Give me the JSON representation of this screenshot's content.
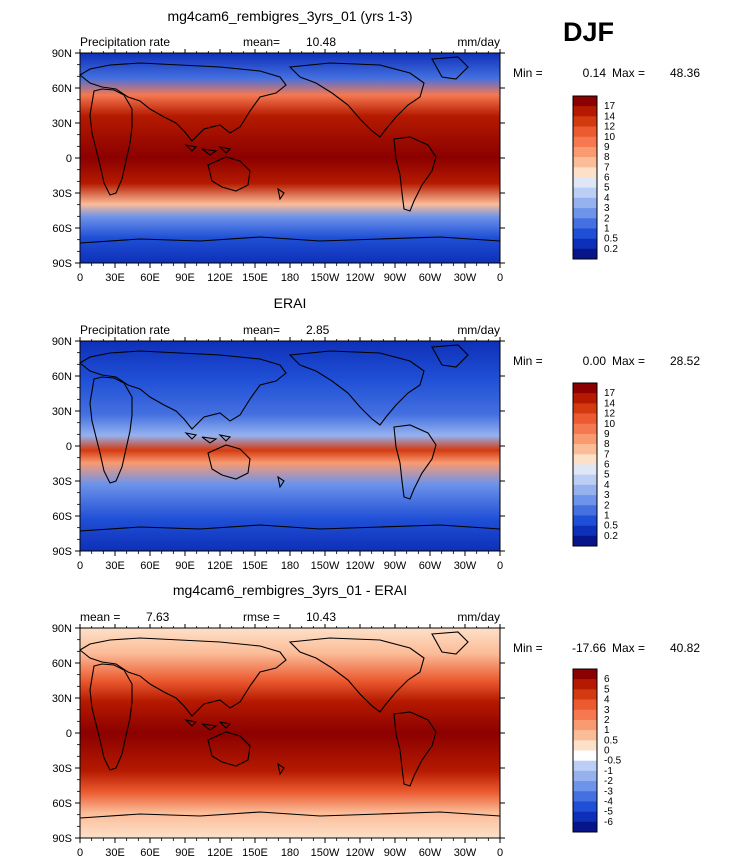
{
  "season": "DJF",
  "chart_data": [
    {
      "type": "heatmap",
      "title": "mg4cam6_rembigres_3yrs_01 (yrs 1-3)",
      "left_label": "Precipitation rate",
      "center_label": "mean=",
      "center_value": "10.48",
      "units": "mm/day",
      "minmax": {
        "min_label": "Min =",
        "min": "0.14",
        "max_label": "Max =",
        "max": "48.36"
      },
      "colorbar": {
        "levels": [
          "17",
          "14",
          "12",
          "10",
          "9",
          "8",
          "7",
          "6",
          "5",
          "4",
          "3",
          "2",
          "1",
          "0.5",
          "0.2"
        ],
        "colors": [
          "#8b0000",
          "#b51a00",
          "#d43a10",
          "#eb5a30",
          "#f57850",
          "#f99a70",
          "#fbbc98",
          "#fde0c8",
          "#dfe7f7",
          "#bccef5",
          "#95b2ef",
          "#6e93ea",
          "#4470e0",
          "#1f4fd6",
          "#0e30b8",
          "#06158a"
        ]
      },
      "x_ticks": [
        "0",
        "30E",
        "60E",
        "90E",
        "120E",
        "150E",
        "180",
        "150W",
        "120W",
        "90W",
        "60W",
        "30W",
        "0"
      ],
      "y_ticks": [
        "90N",
        "60N",
        "30N",
        "0",
        "30S",
        "60S",
        "90S"
      ],
      "x_range": [
        0,
        360
      ],
      "y_range": [
        -90,
        90
      ]
    },
    {
      "type": "heatmap",
      "title": "ERAI",
      "left_label": "Precipitation rate",
      "center_label": "mean=",
      "center_value": "2.85",
      "units": "mm/day",
      "minmax": {
        "min_label": "Min =",
        "min": "0.00",
        "max_label": "Max =",
        "max": "28.52"
      },
      "colorbar": {
        "levels": [
          "17",
          "14",
          "12",
          "10",
          "9",
          "8",
          "7",
          "6",
          "5",
          "4",
          "3",
          "2",
          "1",
          "0.5",
          "0.2"
        ],
        "colors": [
          "#8b0000",
          "#b51a00",
          "#d43a10",
          "#eb5a30",
          "#f57850",
          "#f99a70",
          "#fbbc98",
          "#fde0c8",
          "#dfe7f7",
          "#bccef5",
          "#95b2ef",
          "#6e93ea",
          "#4470e0",
          "#1f4fd6",
          "#0e30b8",
          "#06158a"
        ]
      },
      "x_ticks": [
        "0",
        "30E",
        "60E",
        "90E",
        "120E",
        "150E",
        "180",
        "150W",
        "120W",
        "90W",
        "60W",
        "30W",
        "0"
      ],
      "y_ticks": [
        "90N",
        "60N",
        "30N",
        "0",
        "30S",
        "60S",
        "90S"
      ],
      "x_range": [
        0,
        360
      ],
      "y_range": [
        -90,
        90
      ]
    },
    {
      "type": "heatmap",
      "title": "mg4cam6_rembigres_3yrs_01 - ERAI",
      "left_label": "mean =",
      "left_value": "7.63",
      "center_label": "rmse =",
      "center_value": "10.43",
      "units": "mm/day",
      "minmax": {
        "min_label": "Min =",
        "min": "-17.66",
        "max_label": "Max =",
        "max": "40.82"
      },
      "colorbar": {
        "levels": [
          "6",
          "5",
          "4",
          "3",
          "2",
          "1",
          "0.5",
          "0",
          "-0.5",
          "-1",
          "-2",
          "-3",
          "-4",
          "-5",
          "-6"
        ],
        "colors": [
          "#8b0000",
          "#b51a00",
          "#d43a10",
          "#eb5a30",
          "#f57850",
          "#f99a70",
          "#fbbc98",
          "#fde0c8",
          "#ffffff",
          "#bccef5",
          "#95b2ef",
          "#6e93ea",
          "#4470e0",
          "#1f4fd6",
          "#0e30b8",
          "#06158a"
        ]
      },
      "x_ticks": [
        "0",
        "30E",
        "60E",
        "90E",
        "120E",
        "150E",
        "180",
        "150W",
        "120W",
        "90W",
        "60W",
        "30W",
        "0"
      ],
      "y_ticks": [
        "90N",
        "60N",
        "30N",
        "0",
        "30S",
        "60S",
        "90S"
      ],
      "x_range": [
        0,
        360
      ],
      "y_range": [
        -90,
        90
      ]
    }
  ]
}
